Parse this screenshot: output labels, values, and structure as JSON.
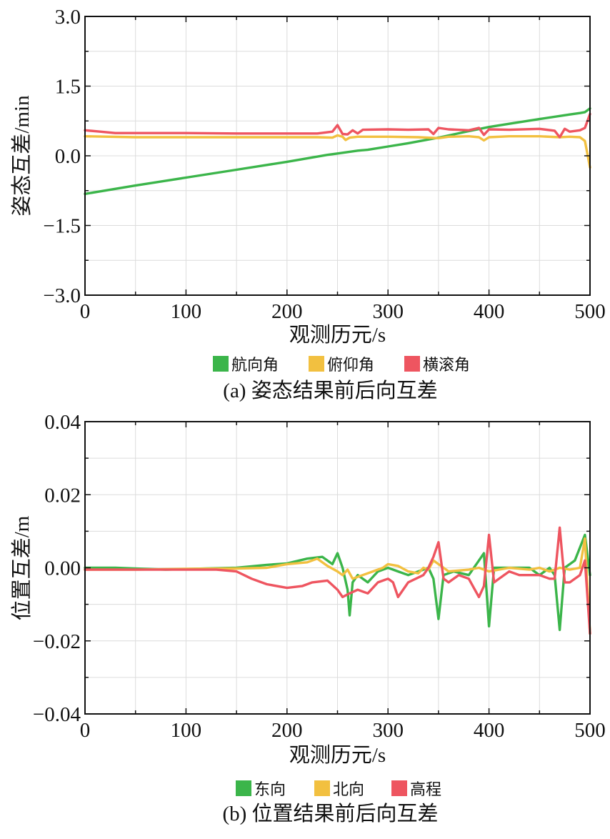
{
  "chart_data": [
    {
      "type": "line",
      "caption": "(a) 姿态结果前后向互差",
      "xlabel": "观测历元/s",
      "ylabel": "姿态互差/min",
      "xlim": [
        0,
        500
      ],
      "ylim": [
        -3.0,
        3.0
      ],
      "x_ticks": [
        "0",
        "100",
        "200",
        "300",
        "400",
        "500"
      ],
      "y_ticks": [
        "−3.0",
        "−1.5",
        "0.0",
        "1.5",
        "3.0"
      ],
      "y_tick_values": [
        -3.0,
        -1.5,
        0.0,
        1.5,
        3.0
      ],
      "grid": true,
      "legend_position": "bottom",
      "series": [
        {
          "name": "航向角",
          "color": "#3bb54a",
          "points": [
            [
              0,
              -0.82
            ],
            [
              50,
              -0.64
            ],
            [
              100,
              -0.47
            ],
            [
              150,
              -0.3
            ],
            [
              200,
              -0.13
            ],
            [
              240,
              0.02
            ],
            [
              250,
              0.05
            ],
            [
              260,
              0.08
            ],
            [
              270,
              0.11
            ],
            [
              280,
              0.13
            ],
            [
              300,
              0.2
            ],
            [
              320,
              0.27
            ],
            [
              350,
              0.39
            ],
            [
              380,
              0.53
            ],
            [
              400,
              0.62
            ],
            [
              420,
              0.69
            ],
            [
              450,
              0.79
            ],
            [
              480,
              0.89
            ],
            [
              490,
              0.92
            ],
            [
              495,
              0.94
            ],
            [
              500,
              1.02
            ]
          ]
        },
        {
          "name": "俯仰角",
          "color": "#f2c040",
          "points": [
            [
              0,
              0.42
            ],
            [
              50,
              0.4
            ],
            [
              100,
              0.4
            ],
            [
              150,
              0.4
            ],
            [
              200,
              0.4
            ],
            [
              230,
              0.4
            ],
            [
              245,
              0.39
            ],
            [
              250,
              0.44
            ],
            [
              255,
              0.41
            ],
            [
              258,
              0.34
            ],
            [
              262,
              0.39
            ],
            [
              270,
              0.41
            ],
            [
              300,
              0.41
            ],
            [
              330,
              0.4
            ],
            [
              350,
              0.38
            ],
            [
              360,
              0.41
            ],
            [
              380,
              0.42
            ],
            [
              390,
              0.4
            ],
            [
              395,
              0.33
            ],
            [
              400,
              0.4
            ],
            [
              420,
              0.42
            ],
            [
              450,
              0.42
            ],
            [
              470,
              0.4
            ],
            [
              480,
              0.41
            ],
            [
              490,
              0.4
            ],
            [
              495,
              0.32
            ],
            [
              500,
              -0.25
            ]
          ]
        },
        {
          "name": "横滚角",
          "color": "#ee5560",
          "points": [
            [
              0,
              0.55
            ],
            [
              15,
              0.52
            ],
            [
              30,
              0.49
            ],
            [
              60,
              0.49
            ],
            [
              100,
              0.49
            ],
            [
              150,
              0.48
            ],
            [
              200,
              0.48
            ],
            [
              230,
              0.48
            ],
            [
              245,
              0.52
            ],
            [
              250,
              0.66
            ],
            [
              255,
              0.47
            ],
            [
              260,
              0.46
            ],
            [
              265,
              0.55
            ],
            [
              270,
              0.48
            ],
            [
              275,
              0.56
            ],
            [
              300,
              0.57
            ],
            [
              320,
              0.56
            ],
            [
              340,
              0.57
            ],
            [
              345,
              0.47
            ],
            [
              350,
              0.6
            ],
            [
              360,
              0.57
            ],
            [
              380,
              0.55
            ],
            [
              390,
              0.6
            ],
            [
              395,
              0.45
            ],
            [
              400,
              0.57
            ],
            [
              420,
              0.56
            ],
            [
              450,
              0.58
            ],
            [
              465,
              0.54
            ],
            [
              470,
              0.4
            ],
            [
              475,
              0.58
            ],
            [
              480,
              0.52
            ],
            [
              490,
              0.55
            ],
            [
              495,
              0.6
            ],
            [
              500,
              0.9
            ]
          ]
        }
      ]
    },
    {
      "type": "line",
      "caption": "(b) 位置结果前后向互差",
      "xlabel": "观测历元/s",
      "ylabel": "位置互差/m",
      "xlim": [
        0,
        500
      ],
      "ylim": [
        -0.04,
        0.04
      ],
      "x_ticks": [
        "0",
        "100",
        "200",
        "300",
        "400",
        "500"
      ],
      "y_ticks": [
        "−0.04",
        "−0.02",
        "0.00",
        "0.02",
        "0.04"
      ],
      "y_tick_values": [
        -0.04,
        -0.02,
        0.0,
        0.02,
        0.04
      ],
      "grid": true,
      "legend_position": "bottom",
      "series": [
        {
          "name": "东向",
          "color": "#3bb54a",
          "points": [
            [
              0,
              0.0
            ],
            [
              30,
              0.0
            ],
            [
              80,
              -0.0005
            ],
            [
              120,
              -0.0002
            ],
            [
              150,
              0.0
            ],
            [
              180,
              0.0008
            ],
            [
              200,
              0.0012
            ],
            [
              220,
              0.0025
            ],
            [
              235,
              0.003
            ],
            [
              245,
              0.001
            ],
            [
              250,
              0.004
            ],
            [
              255,
              0.0
            ],
            [
              260,
              -0.006
            ],
            [
              262,
              -0.013
            ],
            [
              265,
              -0.004
            ],
            [
              270,
              -0.002
            ],
            [
              280,
              -0.004
            ],
            [
              290,
              -0.001
            ],
            [
              300,
              0.0
            ],
            [
              310,
              -0.001
            ],
            [
              320,
              -0.002
            ],
            [
              330,
              -0.001
            ],
            [
              340,
              0.0
            ],
            [
              345,
              -0.003
            ],
            [
              350,
              -0.014
            ],
            [
              355,
              -0.002
            ],
            [
              365,
              -0.001
            ],
            [
              380,
              -0.002
            ],
            [
              390,
              0.002
            ],
            [
              395,
              0.004
            ],
            [
              400,
              -0.016
            ],
            [
              405,
              0.0
            ],
            [
              420,
              0.0
            ],
            [
              440,
              0.0
            ],
            [
              450,
              -0.002
            ],
            [
              460,
              0.0
            ],
            [
              465,
              -0.002
            ],
            [
              470,
              -0.017
            ],
            [
              475,
              0.0
            ],
            [
              485,
              0.002
            ],
            [
              495,
              0.009
            ],
            [
              500,
              -0.002
            ]
          ]
        },
        {
          "name": "北向",
          "color": "#f2c040",
          "points": [
            [
              0,
              -0.0005
            ],
            [
              50,
              -0.0005
            ],
            [
              100,
              -0.0003
            ],
            [
              150,
              -0.0002
            ],
            [
              180,
              0.0
            ],
            [
              200,
              0.001
            ],
            [
              220,
              0.0015
            ],
            [
              230,
              0.0025
            ],
            [
              240,
              0.0005
            ],
            [
              250,
              -0.001
            ],
            [
              255,
              -0.002
            ],
            [
              260,
              -0.0005
            ],
            [
              265,
              -0.003
            ],
            [
              275,
              -0.002
            ],
            [
              285,
              -0.001
            ],
            [
              295,
              0.0
            ],
            [
              300,
              0.001
            ],
            [
              310,
              0.0005
            ],
            [
              320,
              -0.001
            ],
            [
              330,
              -0.0015
            ],
            [
              335,
              0.0
            ],
            [
              340,
              -0.0005
            ],
            [
              345,
              0.002
            ],
            [
              350,
              0.001
            ],
            [
              355,
              0.0
            ],
            [
              360,
              -0.001
            ],
            [
              380,
              -0.0005
            ],
            [
              390,
              0.0
            ],
            [
              400,
              -0.001
            ],
            [
              420,
              0.0
            ],
            [
              440,
              -0.0005
            ],
            [
              450,
              0.0
            ],
            [
              460,
              -0.001
            ],
            [
              470,
              0.0
            ],
            [
              480,
              -0.0005
            ],
            [
              490,
              0.0
            ],
            [
              495,
              0.008
            ],
            [
              500,
              -0.018
            ]
          ]
        },
        {
          "name": "高程",
          "color": "#ee5560",
          "points": [
            [
              0,
              -0.0005
            ],
            [
              50,
              -0.0005
            ],
            [
              100,
              -0.0005
            ],
            [
              130,
              -0.0005
            ],
            [
              150,
              -0.001
            ],
            [
              165,
              -0.003
            ],
            [
              180,
              -0.0045
            ],
            [
              200,
              -0.0055
            ],
            [
              215,
              -0.005
            ],
            [
              225,
              -0.004
            ],
            [
              240,
              -0.0035
            ],
            [
              250,
              -0.006
            ],
            [
              255,
              -0.008
            ],
            [
              262,
              -0.007
            ],
            [
              270,
              -0.006
            ],
            [
              280,
              -0.007
            ],
            [
              290,
              -0.004
            ],
            [
              300,
              -0.003
            ],
            [
              305,
              -0.004
            ],
            [
              310,
              -0.008
            ],
            [
              320,
              -0.004
            ],
            [
              335,
              -0.002
            ],
            [
              340,
              0.0
            ],
            [
              345,
              0.003
            ],
            [
              350,
              0.007
            ],
            [
              355,
              -0.003
            ],
            [
              360,
              -0.004
            ],
            [
              370,
              -0.002
            ],
            [
              380,
              -0.003
            ],
            [
              390,
              -0.008
            ],
            [
              395,
              -0.005
            ],
            [
              400,
              0.009
            ],
            [
              405,
              -0.004
            ],
            [
              410,
              -0.003
            ],
            [
              420,
              -0.001
            ],
            [
              430,
              -0.002
            ],
            [
              450,
              -0.002
            ],
            [
              460,
              -0.003
            ],
            [
              465,
              -0.003
            ],
            [
              470,
              0.011
            ],
            [
              475,
              -0.004
            ],
            [
              480,
              -0.004
            ],
            [
              490,
              -0.002
            ],
            [
              495,
              0.002
            ],
            [
              500,
              -0.018
            ]
          ]
        }
      ]
    }
  ]
}
